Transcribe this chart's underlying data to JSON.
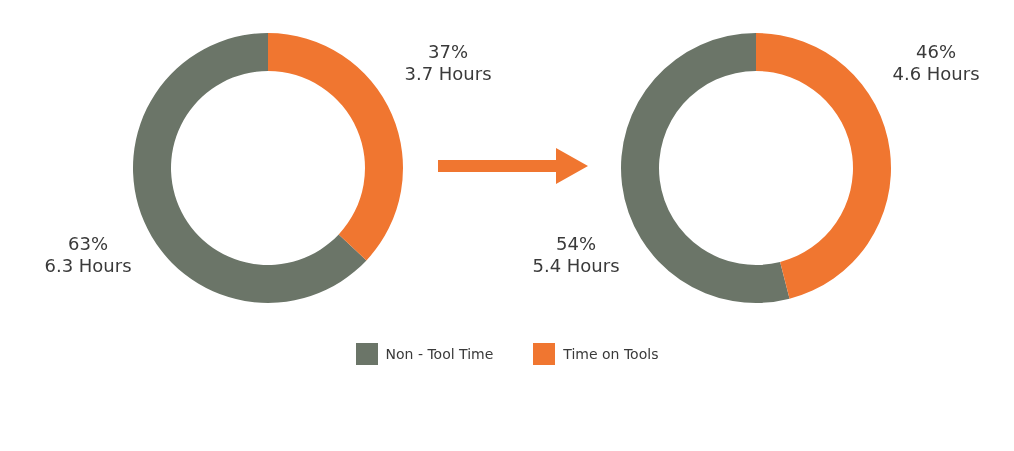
{
  "chart_data": [
    {
      "type": "donut",
      "categories": [
        "Non - Tool Time",
        "Time on Tools"
      ],
      "values": [
        6.3,
        3.7
      ],
      "colors": [
        "#6b7568",
        "#f07630"
      ],
      "value_labels": [
        "63%\n6.3 Hours",
        "37%\n3.7 Hours"
      ],
      "legend": "bottom"
    },
    {
      "type": "donut",
      "categories": [
        null,
        null
      ],
      "values": [
        5.4,
        4.6
      ],
      "colors": [
        "#6b7568",
        "#f07630"
      ],
      "value_labels": [
        "54%\n5.4 Hours",
        "46%\n4.6 Hours"
      ]
    }
  ]
}
